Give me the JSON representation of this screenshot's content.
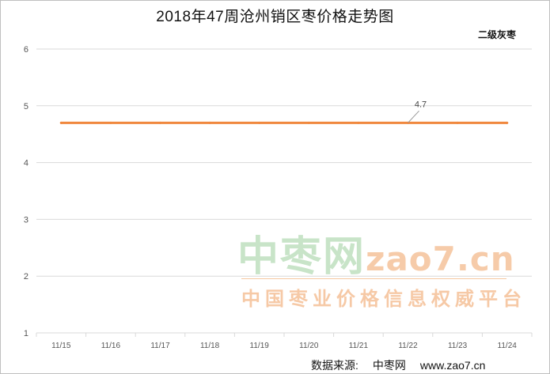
{
  "title": "2018年47周沧州销区枣价格走势图",
  "legend_label": "二级灰枣",
  "source": {
    "label": "数据来源:",
    "name": "中枣网",
    "url": "www.zao7.cn"
  },
  "watermark": {
    "brand_cn": "中枣网",
    "brand_url": "zao7.cn",
    "slogan": "中国枣业价格信息权威平台"
  },
  "colors": {
    "line": "#f0883e",
    "grid": "#d9d9d9",
    "axis_text": "#555555"
  },
  "chart_data": {
    "type": "line",
    "title": "2018年47周沧州销区枣价格走势图",
    "categories": [
      "11/15",
      "11/16",
      "11/17",
      "11/18",
      "11/19",
      "11/20",
      "11/21",
      "11/22",
      "11/23",
      "11/24"
    ],
    "series": [
      {
        "name": "二级灰枣",
        "values": [
          4.7,
          4.7,
          4.7,
          4.7,
          4.7,
          4.7,
          4.7,
          4.7,
          4.7,
          4.7
        ]
      }
    ],
    "annotations": [
      {
        "category": "11/22",
        "value": 4.7,
        "text": "4.7"
      }
    ],
    "ylim": [
      1,
      6
    ],
    "yticks": [
      1,
      2,
      3,
      4,
      5,
      6
    ],
    "xlabel": "",
    "ylabel": "",
    "grid": true
  }
}
